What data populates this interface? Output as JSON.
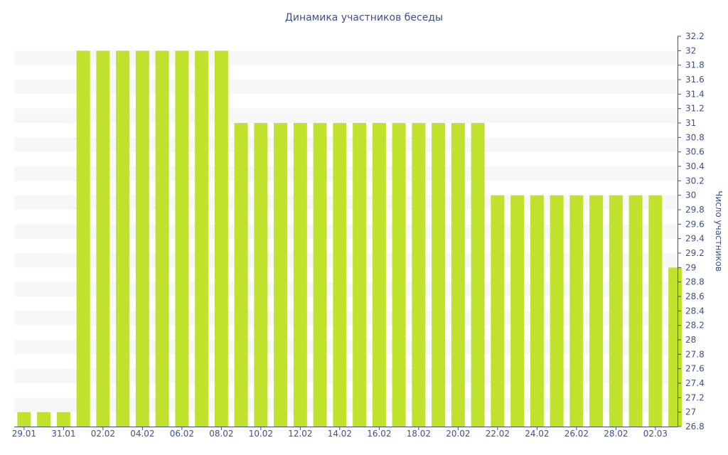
{
  "chart_data": {
    "type": "bar",
    "title": "Динамика участников беседы",
    "xlabel": "",
    "ylabel": "Число участников",
    "ylim": [
      26.8,
      32.2
    ],
    "y_ticks": [
      "26.8",
      "27",
      "27.2",
      "27.4",
      "27.6",
      "27.8",
      "28",
      "28.2",
      "28.4",
      "28.6",
      "28.8",
      "29",
      "29.2",
      "29.4",
      "29.6",
      "29.8",
      "30",
      "30.2",
      "30.4",
      "30.6",
      "30.8",
      "31",
      "31.2",
      "31.4",
      "31.6",
      "31.8",
      "32",
      "32.2"
    ],
    "y_axis_position": "right",
    "grid": "horizontal bands",
    "categories": [
      "29.01",
      "30.01",
      "31.01",
      "01.02",
      "02.02",
      "03.02",
      "04.02",
      "05.02",
      "06.02",
      "07.02",
      "08.02",
      "09.02",
      "10.02",
      "11.02",
      "12.02",
      "13.02",
      "14.02",
      "15.02",
      "16.02",
      "17.02",
      "18.02",
      "19.02",
      "20.02",
      "21.02",
      "22.02",
      "23.02",
      "24.02",
      "25.02",
      "26.02",
      "27.02",
      "28.02",
      "01.03",
      "02.03",
      "03.03"
    ],
    "x_tick_labels": [
      "29.01",
      "31.01",
      "02.02",
      "04.02",
      "06.02",
      "08.02",
      "10.02",
      "12.02",
      "14.02",
      "16.02",
      "18.02",
      "20.02",
      "22.02",
      "24.02",
      "26.02",
      "28.02",
      "02.03"
    ],
    "values": [
      27,
      27,
      27,
      32,
      32,
      32,
      32,
      32,
      32,
      32,
      32,
      31,
      31,
      31,
      31,
      31,
      31,
      31,
      31,
      31,
      31,
      31,
      31,
      31,
      30,
      30,
      30,
      30,
      30,
      30,
      30,
      30,
      30,
      29
    ]
  },
  "colors": {
    "bar": "#c0e22c",
    "text": "#3e4f8f",
    "band": "#f7f7f7",
    "axis": "#3e4f8f"
  }
}
